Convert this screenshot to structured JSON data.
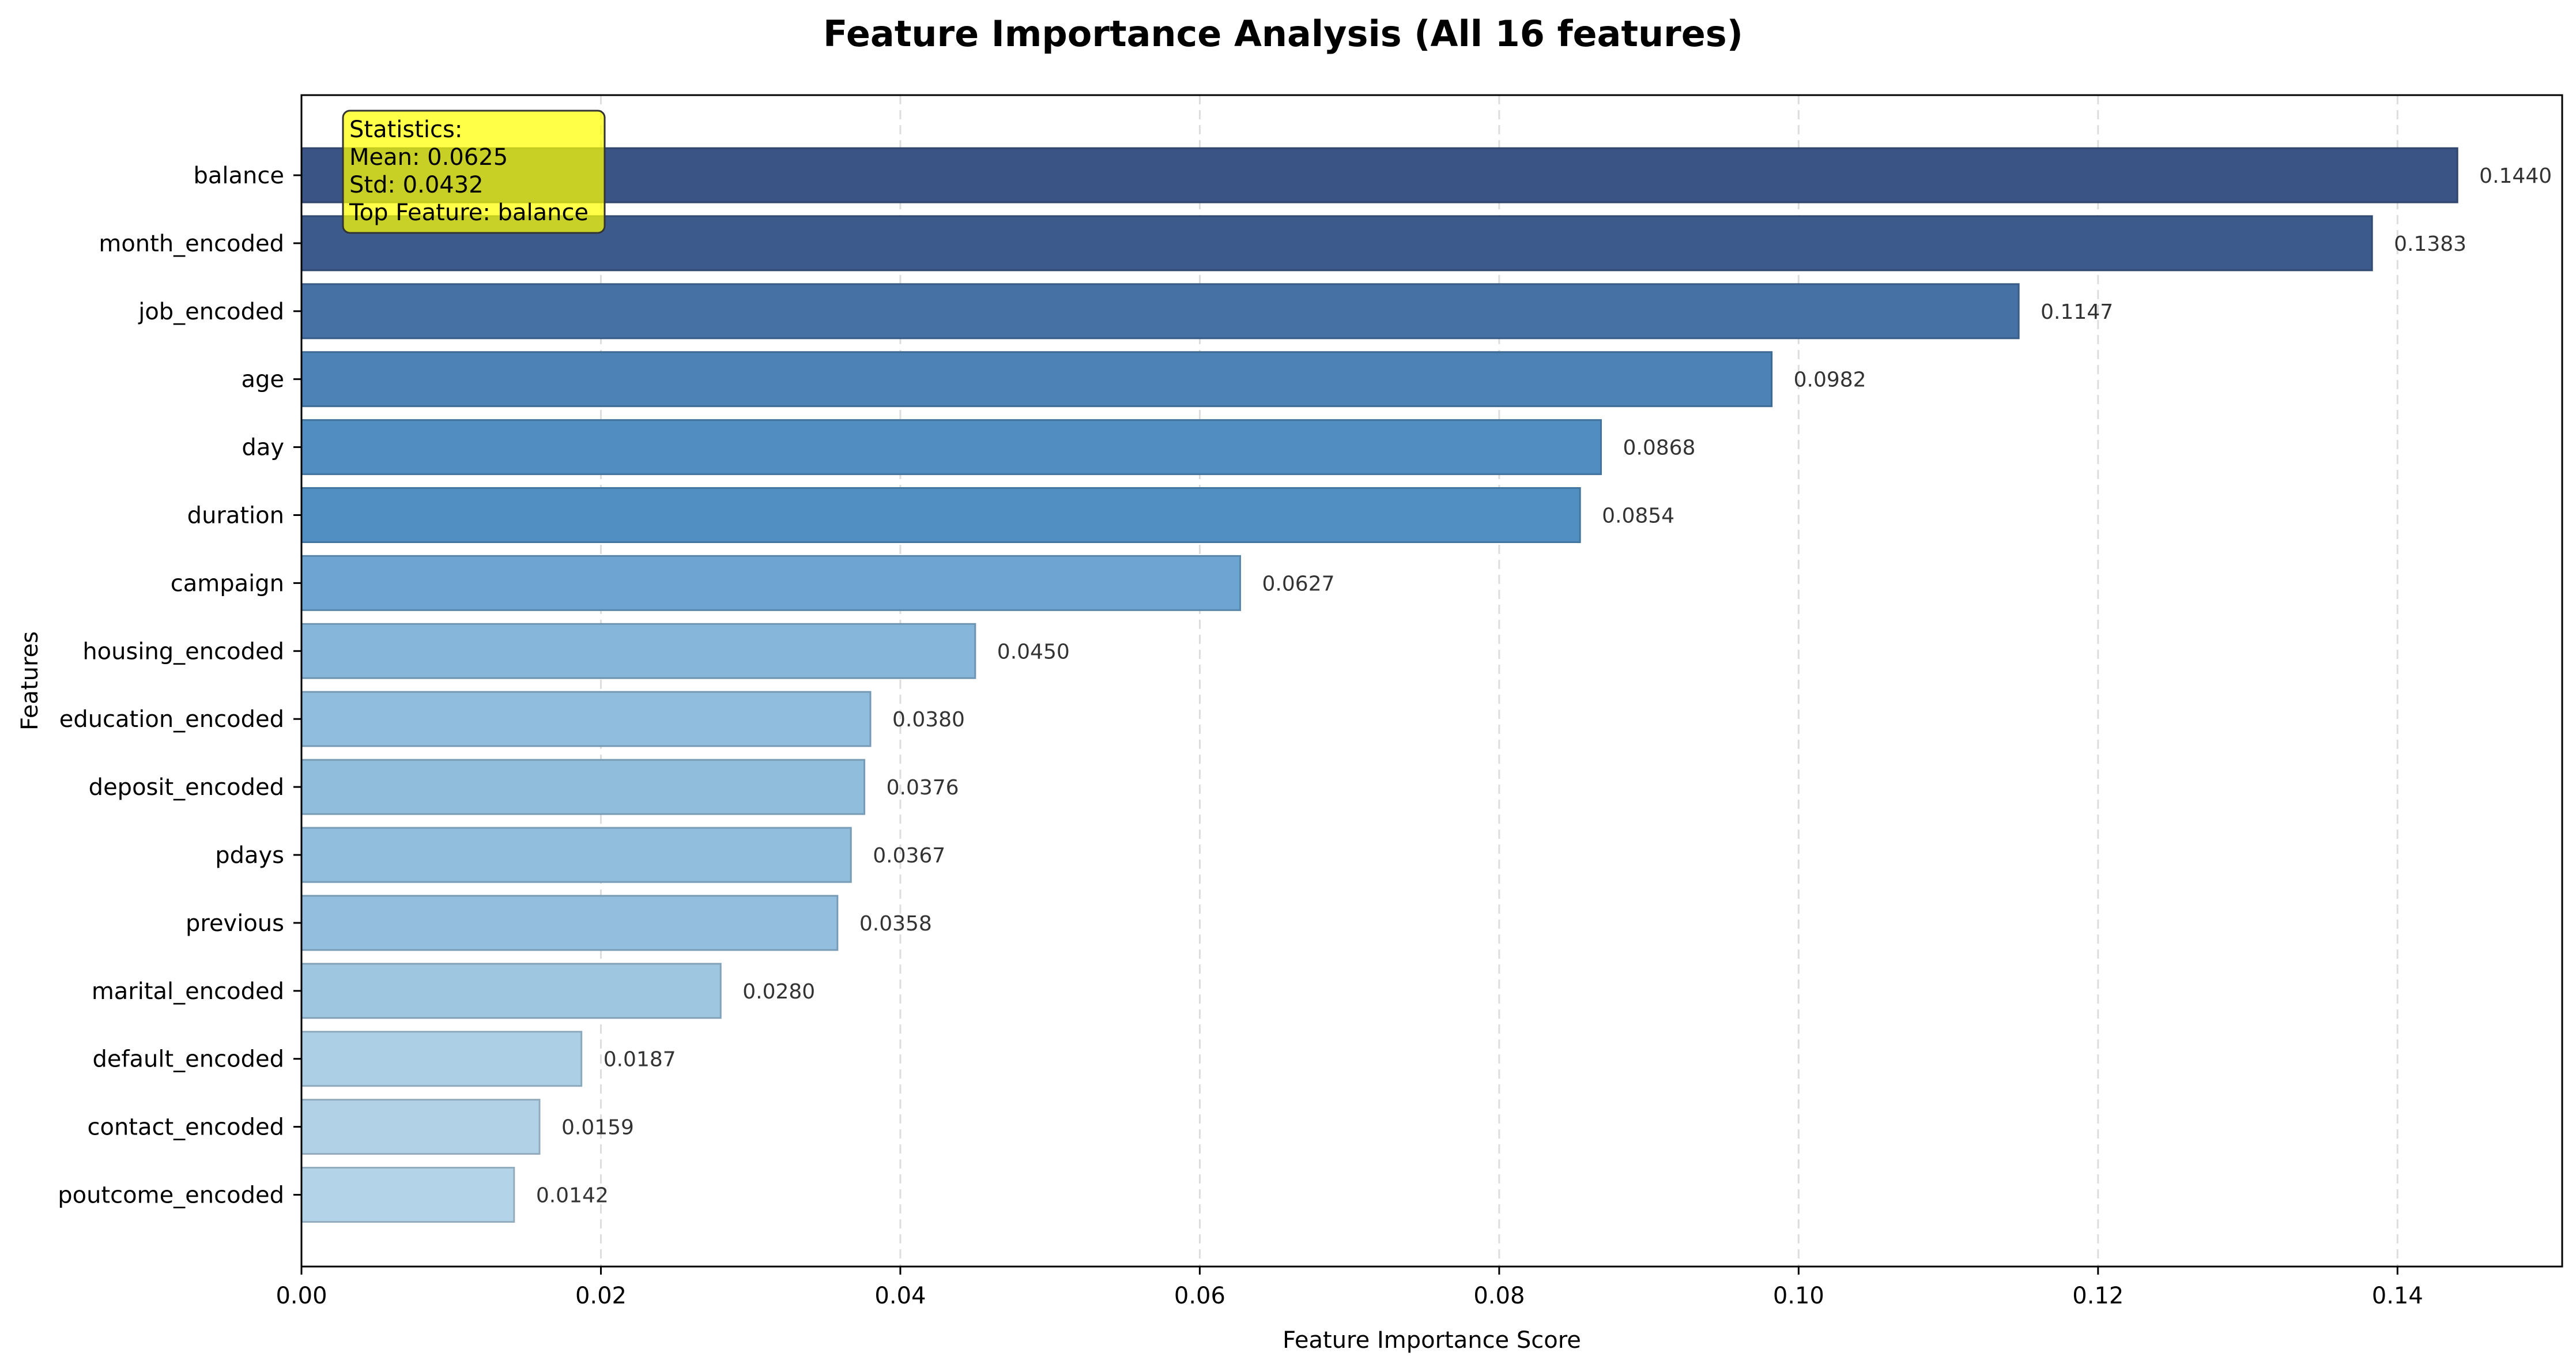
{
  "chart_data": {
    "type": "bar",
    "orientation": "horizontal",
    "title": "Feature Importance Analysis (All 16 features)",
    "xlabel": "Feature Importance Score",
    "ylabel": "Features",
    "xlim": [
      0,
      0.151
    ],
    "x_ticks": [
      0.0,
      0.02,
      0.04,
      0.06,
      0.08,
      0.1,
      0.12,
      0.14
    ],
    "x_tick_labels": [
      "0.00",
      "0.02",
      "0.04",
      "0.06",
      "0.08",
      "0.10",
      "0.12",
      "0.14"
    ],
    "grid": true,
    "categories": [
      "balance",
      "month_encoded",
      "job_encoded",
      "age",
      "day",
      "duration",
      "campaign",
      "housing_encoded",
      "education_encoded",
      "deposit_encoded",
      "pdays",
      "previous",
      "marital_encoded",
      "default_encoded",
      "contact_encoded",
      "poutcome_encoded"
    ],
    "values": [
      0.144,
      0.1383,
      0.1147,
      0.0982,
      0.0868,
      0.0854,
      0.0627,
      0.045,
      0.038,
      0.0376,
      0.0367,
      0.0358,
      0.028,
      0.0187,
      0.0159,
      0.0142
    ],
    "value_labels": [
      "0.1440",
      "0.1383",
      "0.1147",
      "0.0982",
      "0.0868",
      "0.0854",
      "0.0627",
      "0.0450",
      "0.0380",
      "0.0376",
      "0.0367",
      "0.0358",
      "0.0280",
      "0.0187",
      "0.0159",
      "0.0142"
    ],
    "colormap": {
      "low": "#b3d3e8",
      "mid": "#5495c9",
      "high": "#3a5485"
    },
    "stats_box": {
      "lines": [
        "Statistics:",
        "Mean: 0.0625",
        "Std: 0.0432",
        "Top Feature: balance"
      ],
      "background": "#ffff00",
      "position": "top-left"
    }
  }
}
